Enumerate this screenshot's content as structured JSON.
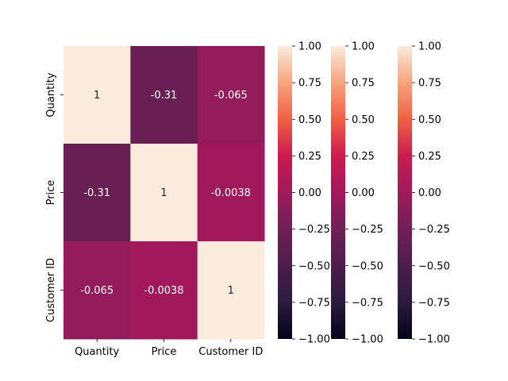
{
  "chart_data": {
    "type": "heatmap",
    "title": "",
    "row_labels": [
      "Quantity",
      "Price",
      "Customer ID"
    ],
    "col_labels": [
      "Quantity",
      "Price",
      "Customer ID"
    ],
    "values": [
      [
        1,
        -0.31,
        -0.065
      ],
      [
        -0.31,
        1,
        -0.0038
      ],
      [
        -0.065,
        -0.0038,
        1
      ]
    ],
    "cell_labels": [
      [
        "1",
        "-0.31",
        "-0.065"
      ],
      [
        "-0.31",
        "1",
        "-0.0038"
      ],
      [
        "-0.065",
        "-0.0038",
        "1"
      ]
    ],
    "vmin": -1,
    "vmax": 1,
    "colormap": "rocket",
    "colorbar_count": 3,
    "colorbar_ticks": [
      1.0,
      0.75,
      0.5,
      0.25,
      0.0,
      -0.25,
      -0.5,
      -0.75,
      -1.0
    ],
    "colorbar_tick_labels": [
      "1.00",
      "0.75",
      "0.50",
      "0.25",
      "0.00",
      "−0.25",
      "−0.50",
      "−0.75",
      "−1.00"
    ]
  }
}
